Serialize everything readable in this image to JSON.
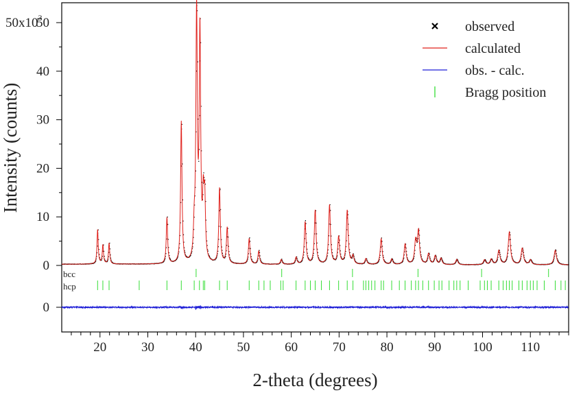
{
  "chart_data": {
    "type": "line",
    "xlabel": "2-theta (degrees)",
    "ylabel": "Intensity (counts)",
    "y_multiplier_label": {
      "base": "50x10",
      "exp": "3"
    },
    "xlim": [
      12,
      118
    ],
    "ylim": [
      0,
      50000
    ],
    "x_ticks": [
      20,
      30,
      40,
      50,
      60,
      70,
      80,
      90,
      100,
      110
    ],
    "y_ticks": [
      0,
      10000,
      20000,
      30000,
      40000,
      50000
    ],
    "y_tick_labels": [
      "0",
      "10",
      "20",
      "30",
      "40",
      "50"
    ],
    "diff_axis_tick_label": "0",
    "legend": {
      "position": "top-right",
      "entries": [
        {
          "label": "observed",
          "marker": "x",
          "color": "#000000"
        },
        {
          "label": "calculated",
          "marker": "line",
          "color": "#e0201b"
        },
        {
          "label": "obs. - calc.",
          "marker": "line",
          "color": "#1c1cd6"
        },
        {
          "label": "Bragg position",
          "marker": "tick",
          "color": "#33dd33"
        }
      ]
    },
    "colors": {
      "observed": "#000000",
      "calculated": "#e0201b",
      "difference": "#1c1cd6",
      "bragg": "#33dd33"
    },
    "background_counts": 100,
    "peaks": [
      {
        "x": 19.5,
        "y": 7200
      },
      {
        "x": 20.6,
        "y": 4000
      },
      {
        "x": 21.9,
        "y": 4400
      },
      {
        "x": 34.0,
        "y": 9600
      },
      {
        "x": 37.0,
        "y": 29300
      },
      {
        "x": 39.7,
        "y": 5600
      },
      {
        "x": 40.2,
        "y": 51500
      },
      {
        "x": 40.9,
        "y": 46800
      },
      {
        "x": 41.6,
        "y": 11500
      },
      {
        "x": 41.9,
        "y": 12000
      },
      {
        "x": 45.0,
        "y": 15600
      },
      {
        "x": 46.6,
        "y": 7500
      },
      {
        "x": 51.2,
        "y": 5400
      },
      {
        "x": 53.2,
        "y": 2800
      },
      {
        "x": 57.9,
        "y": 1100
      },
      {
        "x": 61.0,
        "y": 1500
      },
      {
        "x": 62.9,
        "y": 8800
      },
      {
        "x": 65.0,
        "y": 11200
      },
      {
        "x": 68.0,
        "y": 12300
      },
      {
        "x": 69.9,
        "y": 5700
      },
      {
        "x": 71.7,
        "y": 11200
      },
      {
        "x": 72.9,
        "y": 1800
      },
      {
        "x": 75.6,
        "y": 1300
      },
      {
        "x": 78.8,
        "y": 5400
      },
      {
        "x": 81.0,
        "y": 1200
      },
      {
        "x": 83.8,
        "y": 4300
      },
      {
        "x": 86.0,
        "y": 4700
      },
      {
        "x": 86.6,
        "y": 6800
      },
      {
        "x": 88.7,
        "y": 2300
      },
      {
        "x": 90.1,
        "y": 1900
      },
      {
        "x": 91.3,
        "y": 1400
      },
      {
        "x": 94.6,
        "y": 1200
      },
      {
        "x": 100.4,
        "y": 1100
      },
      {
        "x": 101.8,
        "y": 1200
      },
      {
        "x": 103.4,
        "y": 3000
      },
      {
        "x": 105.6,
        "y": 6800
      },
      {
        "x": 108.3,
        "y": 3500
      },
      {
        "x": 110.0,
        "y": 1100
      },
      {
        "x": 115.2,
        "y": 3100
      }
    ],
    "bragg_positions": {
      "bcc": {
        "label": "bcc",
        "x": [
          40.1,
          58.0,
          72.8,
          86.5,
          99.8,
          113.8
        ]
      },
      "hcp": {
        "label": "hcp",
        "x": [
          19.5,
          20.6,
          21.9,
          28.2,
          34.0,
          37.0,
          39.7,
          40.8,
          41.6,
          41.9,
          45.0,
          46.6,
          51.2,
          53.2,
          54.3,
          55.6,
          57.8,
          58.3,
          61.0,
          62.9,
          64.0,
          65.0,
          66.3,
          68.0,
          69.9,
          71.7,
          72.9,
          75.1,
          75.6,
          76.2,
          76.8,
          77.5,
          78.8,
          79.3,
          81.0,
          82.6,
          83.8,
          85.1,
          86.0,
          86.6,
          87.5,
          88.7,
          89.9,
          90.9,
          91.5,
          93.0,
          94.0,
          94.6,
          95.3,
          97.0,
          99.5,
          100.4,
          101.0,
          101.8,
          103.4,
          104.3,
          105.0,
          105.6,
          106.2,
          107.6,
          108.3,
          109.3,
          110.0,
          110.6,
          111.4,
          112.9,
          115.2,
          116.4,
          117.3
        ]
      }
    }
  }
}
